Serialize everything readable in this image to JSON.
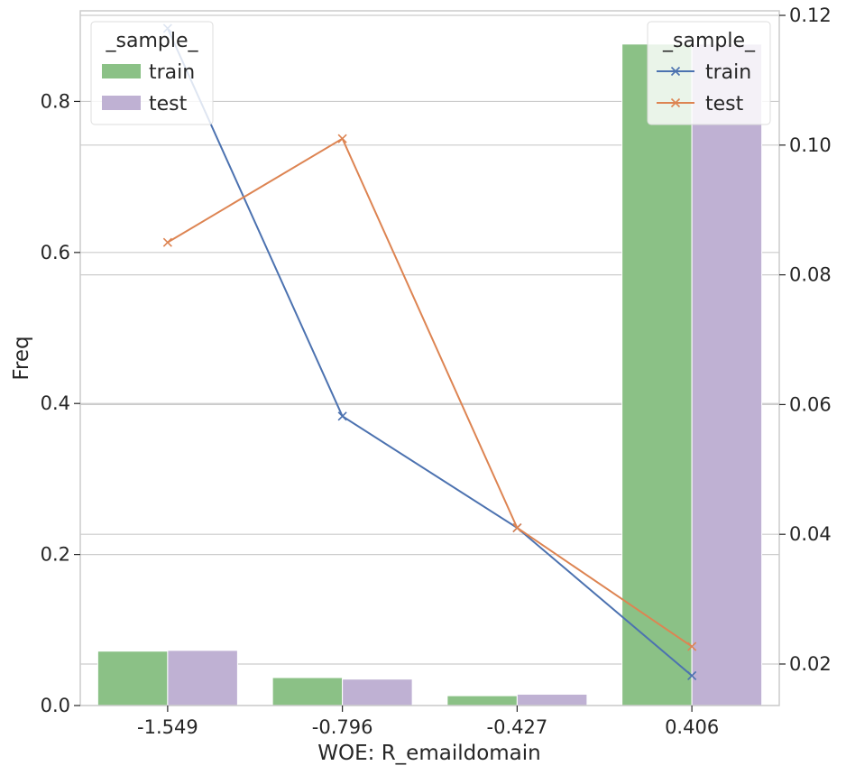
{
  "chart_data": {
    "type": "bar",
    "xlabel": "WOE: R_emaildomain",
    "ylabel": "Freq",
    "categories": [
      "-1.549",
      "-0.796",
      "-0.427",
      "0.406"
    ],
    "ylim": [
      0,
      0.92
    ],
    "yticks": [
      "0.0",
      "0.2",
      "0.4",
      "0.6",
      "0.8"
    ],
    "y2lim": [
      0.0136,
      0.1207
    ],
    "y2ticks": [
      "0.02",
      "0.04",
      "0.06",
      "0.08",
      "0.10",
      "0.12"
    ],
    "grid": true,
    "bar_series": [
      {
        "name": "train",
        "color": "#8bc186",
        "values": [
          0.072,
          0.037,
          0.013,
          0.876
        ]
      },
      {
        "name": "test",
        "color": "#bfb1d3",
        "values": [
          0.073,
          0.035,
          0.015,
          0.876
        ]
      }
    ],
    "line_series": [
      {
        "name": "train",
        "color": "#4c72b0",
        "marker": "x",
        "values": [
          0.118,
          0.0582,
          0.041,
          0.0182
        ]
      },
      {
        "name": "test",
        "color": "#dd8452",
        "marker": "x",
        "values": [
          0.085,
          0.101,
          0.041,
          0.0227
        ]
      }
    ],
    "legends": [
      {
        "title": "_sample_",
        "placement": "top-left",
        "entries": [
          "train",
          "test"
        ]
      },
      {
        "title": "_sample_",
        "placement": "top-right",
        "entries": [
          "train",
          "test"
        ]
      }
    ]
  }
}
